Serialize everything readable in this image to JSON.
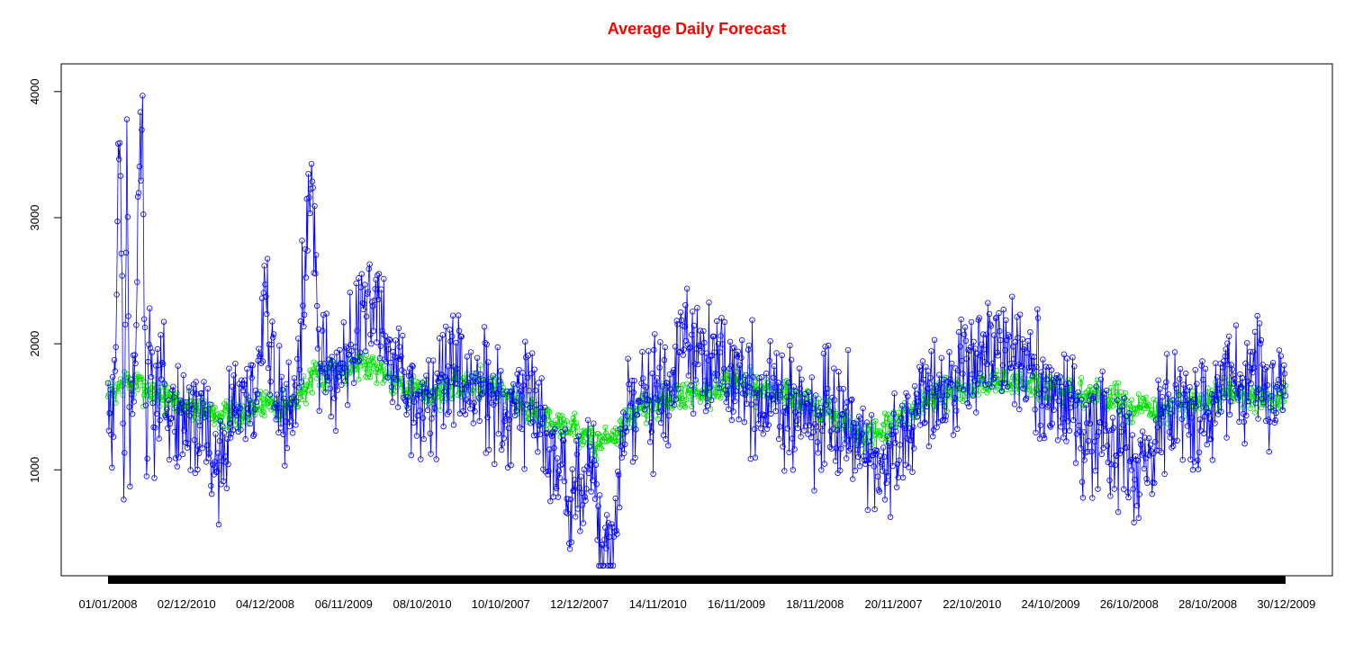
{
  "chart_data": {
    "type": "line",
    "title": "Average Daily Forecast",
    "xlabel": "",
    "ylabel": "",
    "ylim": [
      160,
      4220
    ],
    "y_ticks": [
      1000,
      2000,
      3000,
      4000
    ],
    "x_tick_labels": [
      "01/01/2008",
      "02/12/2010",
      "04/12/2008",
      "06/11/2009",
      "08/10/2010",
      "10/10/2007",
      "12/12/2007",
      "14/11/2010",
      "16/11/2009",
      "18/11/2008",
      "20/11/2007",
      "22/10/2010",
      "24/10/2009",
      "26/10/2008",
      "28/10/2008",
      "30/12/2009"
    ],
    "x_tick_step": 100,
    "grid": false,
    "legend": "none",
    "point_count": 1500,
    "series": [
      {
        "color": "#0000ff",
        "marker": "open-circle",
        "anchors_x": [
          1,
          5,
          8,
          12,
          15,
          18,
          20,
          22,
          25,
          28,
          30,
          32,
          35,
          40,
          45,
          50,
          52,
          55,
          60,
          70,
          80,
          90,
          100,
          110,
          120,
          130,
          140,
          150,
          160,
          175,
          190,
          200,
          215,
          230,
          245,
          260,
          270,
          280,
          290,
          300,
          320,
          340,
          360,
          380,
          400,
          420,
          440,
          460,
          480,
          500,
          520,
          540,
          560,
          580,
          600,
          620,
          630,
          640,
          660,
          680,
          700,
          720,
          740,
          760,
          780,
          800,
          820,
          840,
          860,
          880,
          900,
          920,
          940,
          960,
          980,
          1000,
          1020,
          1040,
          1060,
          1080,
          1100,
          1120,
          1140,
          1160,
          1180,
          1200,
          1220,
          1240,
          1260,
          1280,
          1300,
          1320,
          1340,
          1360,
          1380,
          1400,
          1420,
          1440,
          1460,
          1480,
          1500
        ],
        "anchors_y": [
          1960,
          1000,
          1500,
          2200,
          3820,
          3150,
          1300,
          900,
          4030,
          1100,
          1400,
          1700,
          1700,
          3330,
          3500,
          1000,
          1400,
          2100,
          1400,
          1800,
          1200,
          1500,
          1400,
          1300,
          1500,
          1100,
          1000,
          1200,
          1400,
          1600,
          1400,
          2500,
          1500,
          1400,
          1800,
          3560,
          1800,
          1900,
          1600,
          1900,
          2100,
          2400,
          1800,
          1700,
          1500,
          1600,
          1800,
          1700,
          1600,
          1500,
          1600,
          1500,
          1200,
          1000,
          800,
          1000,
          270,
          260,
          1400,
          1500,
          1600,
          1800,
          2000,
          1800,
          1900,
          1700,
          1600,
          1500,
          1600,
          1500,
          1400,
          1500,
          1400,
          1300,
          1000,
          1200,
          1400,
          1600,
          1500,
          1700,
          1800,
          1900,
          2000,
          1800,
          1700,
          1600,
          1500,
          1400,
          1300,
          1200,
          1100,
          950,
          1400,
          1500,
          1400,
          1500,
          1600,
          1700,
          1700,
          1600,
          1600
        ]
      },
      {
        "color": "#00dd00",
        "marker": "open-circle",
        "anchors_x": [
          1,
          20,
          50,
          80,
          110,
          140,
          170,
          200,
          230,
          260,
          290,
          320,
          350,
          380,
          410,
          440,
          470,
          500,
          530,
          560,
          590,
          620,
          650,
          680,
          710,
          740,
          770,
          800,
          830,
          860,
          890,
          920,
          950,
          980,
          1010,
          1040,
          1070,
          1100,
          1130,
          1160,
          1190,
          1220,
          1250,
          1280,
          1310,
          1340,
          1370,
          1400,
          1430,
          1460,
          1490,
          1500
        ],
        "anchors_y": [
          1550,
          1700,
          1650,
          1550,
          1500,
          1450,
          1400,
          1550,
          1500,
          1700,
          1800,
          1850,
          1800,
          1650,
          1600,
          1650,
          1700,
          1650,
          1500,
          1400,
          1350,
          1200,
          1300,
          1500,
          1550,
          1600,
          1650,
          1700,
          1650,
          1600,
          1550,
          1450,
          1300,
          1250,
          1400,
          1550,
          1600,
          1650,
          1700,
          1700,
          1650,
          1600,
          1600,
          1550,
          1500,
          1450,
          1500,
          1550,
          1600,
          1600,
          1550,
          1550
        ]
      }
    ]
  }
}
